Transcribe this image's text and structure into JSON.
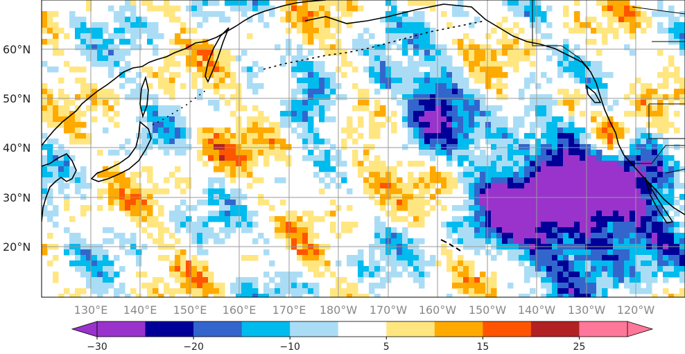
{
  "map": {
    "projection": "PlateCarree",
    "lon_range_east": [
      120,
      250
    ],
    "lat_range": [
      10,
      70
    ],
    "lat_ticks": [
      "20°N",
      "30°N",
      "40°N",
      "50°N",
      "60°N"
    ],
    "lon_ticks": [
      "130°E",
      "140°E",
      "150°E",
      "160°E",
      "170°E",
      "180°W",
      "170°W",
      "160°W",
      "150°W",
      "140°W",
      "130°W",
      "120°W"
    ],
    "gridlines": true,
    "field": "anomaly (shaded contours)"
  },
  "colorbar": {
    "orientation": "horizontal",
    "extend": "both",
    "boundaries": [
      -30,
      -25,
      -20,
      -15,
      -10,
      -5,
      5,
      10,
      15,
      20,
      25,
      30
    ],
    "colors": [
      "#9933cc",
      "#000099",
      "#3366cc",
      "#00bbee",
      "#aaddf5",
      "#ffffff",
      "#ffe680",
      "#ffaa00",
      "#ff5500",
      "#b22222",
      "#ff7799"
    ],
    "under_color": "#9933cc",
    "over_color": "#ff7799",
    "tick_labels": [
      "−30",
      "−20",
      "−10",
      "5",
      "15",
      "25"
    ],
    "tick_values": [
      -30,
      -20,
      -10,
      5,
      15,
      25
    ]
  },
  "colors": {
    "coastline": "#000000",
    "gridline": "#999999",
    "frame": "#000000"
  }
}
